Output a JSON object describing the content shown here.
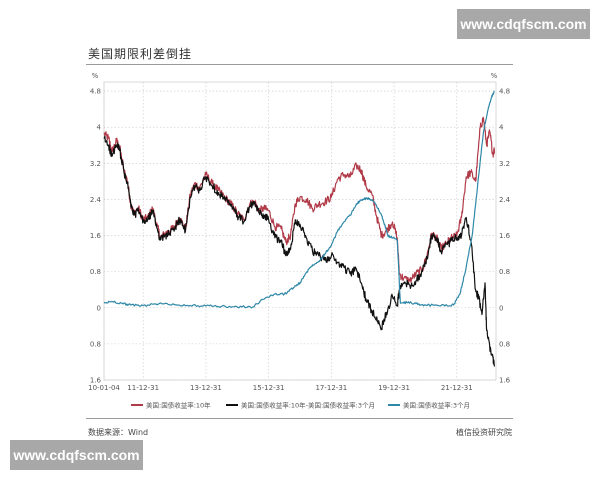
{
  "watermark": "www.cdqfscm.com",
  "chart_data": {
    "type": "line",
    "title": "美国期限利差倒挂",
    "left_unit": "%",
    "right_unit": "%",
    "ylim": [
      -1.6,
      5.0
    ],
    "yticks": [
      4.8,
      4,
      3.2,
      2.4,
      1.6,
      0.8,
      0,
      -0.8,
      -1.6
    ],
    "ytick_labels": [
      "4.8",
      "4",
      "3.2",
      "2.4",
      "1.6",
      "0.8",
      "0",
      "0.8",
      "1.6"
    ],
    "xlim": [
      2010.75,
      2023.25
    ],
    "xticks": [
      {
        "t": 2010.75,
        "label": "10-01-04"
      },
      {
        "t": 2012.0,
        "label": "11-12-31"
      },
      {
        "t": 2014.0,
        "label": "13-12-31"
      },
      {
        "t": 2016.0,
        "label": "15-12-31"
      },
      {
        "t": 2018.0,
        "label": "17-12-31"
      },
      {
        "t": 2020.0,
        "label": "19-12-31"
      },
      {
        "t": 2022.0,
        "label": "21-12-31"
      }
    ],
    "grid": true,
    "legend_position": "bottom",
    "series": [
      {
        "name": "美国:国债收益率:10年",
        "color": "#b03a48",
        "points": [
          [
            2010.75,
            3.85
          ],
          [
            2010.9,
            3.75
          ],
          [
            2011.0,
            3.45
          ],
          [
            2011.15,
            3.7
          ],
          [
            2011.25,
            3.55
          ],
          [
            2011.4,
            3.0
          ],
          [
            2011.5,
            2.8
          ],
          [
            2011.6,
            2.3
          ],
          [
            2011.7,
            2.1
          ],
          [
            2011.85,
            2.2
          ],
          [
            2012.0,
            1.95
          ],
          [
            2012.15,
            2.0
          ],
          [
            2012.3,
            2.2
          ],
          [
            2012.45,
            1.8
          ],
          [
            2012.55,
            1.55
          ],
          [
            2012.7,
            1.65
          ],
          [
            2012.85,
            1.7
          ],
          [
            2013.0,
            1.8
          ],
          [
            2013.15,
            2.0
          ],
          [
            2013.35,
            1.75
          ],
          [
            2013.5,
            2.5
          ],
          [
            2013.65,
            2.75
          ],
          [
            2013.8,
            2.65
          ],
          [
            2014.0,
            2.95
          ],
          [
            2014.2,
            2.75
          ],
          [
            2014.4,
            2.6
          ],
          [
            2014.6,
            2.45
          ],
          [
            2014.8,
            2.3
          ],
          [
            2015.0,
            2.1
          ],
          [
            2015.2,
            1.95
          ],
          [
            2015.4,
            2.3
          ],
          [
            2015.55,
            2.35
          ],
          [
            2015.7,
            2.15
          ],
          [
            2015.85,
            2.2
          ],
          [
            2016.0,
            2.15
          ],
          [
            2016.2,
            1.8
          ],
          [
            2016.4,
            1.75
          ],
          [
            2016.55,
            1.45
          ],
          [
            2016.7,
            1.6
          ],
          [
            2016.85,
            2.3
          ],
          [
            2017.0,
            2.45
          ],
          [
            2017.2,
            2.4
          ],
          [
            2017.4,
            2.2
          ],
          [
            2017.6,
            2.3
          ],
          [
            2017.8,
            2.35
          ],
          [
            2018.0,
            2.45
          ],
          [
            2018.2,
            2.85
          ],
          [
            2018.4,
            2.95
          ],
          [
            2018.6,
            2.9
          ],
          [
            2018.8,
            3.15
          ],
          [
            2018.95,
            3.05
          ],
          [
            2019.1,
            2.7
          ],
          [
            2019.3,
            2.5
          ],
          [
            2019.45,
            2.0
          ],
          [
            2019.6,
            1.6
          ],
          [
            2019.75,
            1.7
          ],
          [
            2019.95,
            1.9
          ],
          [
            2020.1,
            1.55
          ],
          [
            2020.17,
            0.75
          ],
          [
            2020.3,
            0.65
          ],
          [
            2020.5,
            0.6
          ],
          [
            2020.7,
            0.75
          ],
          [
            2020.9,
            0.85
          ],
          [
            2021.05,
            1.15
          ],
          [
            2021.2,
            1.65
          ],
          [
            2021.35,
            1.55
          ],
          [
            2021.5,
            1.3
          ],
          [
            2021.7,
            1.45
          ],
          [
            2021.85,
            1.55
          ],
          [
            2022.0,
            1.6
          ],
          [
            2022.15,
            2.0
          ],
          [
            2022.3,
            2.9
          ],
          [
            2022.45,
            3.0
          ],
          [
            2022.6,
            2.8
          ],
          [
            2022.75,
            4.0
          ],
          [
            2022.85,
            4.2
          ],
          [
            2022.95,
            3.6
          ],
          [
            2023.05,
            3.9
          ],
          [
            2023.15,
            3.4
          ],
          [
            2023.2,
            3.5
          ]
        ]
      },
      {
        "name": "美国:国债收益率:10年-美国:国债收益率:3个月",
        "color": "#111111",
        "points": [
          [
            2010.75,
            3.75
          ],
          [
            2010.9,
            3.6
          ],
          [
            2011.0,
            3.35
          ],
          [
            2011.15,
            3.6
          ],
          [
            2011.25,
            3.5
          ],
          [
            2011.4,
            2.95
          ],
          [
            2011.5,
            2.75
          ],
          [
            2011.6,
            2.3
          ],
          [
            2011.7,
            2.05
          ],
          [
            2011.85,
            2.15
          ],
          [
            2012.0,
            1.9
          ],
          [
            2012.15,
            1.95
          ],
          [
            2012.3,
            2.15
          ],
          [
            2012.45,
            1.75
          ],
          [
            2012.55,
            1.5
          ],
          [
            2012.7,
            1.6
          ],
          [
            2012.85,
            1.65
          ],
          [
            2013.0,
            1.75
          ],
          [
            2013.15,
            1.95
          ],
          [
            2013.35,
            1.7
          ],
          [
            2013.5,
            2.45
          ],
          [
            2013.65,
            2.7
          ],
          [
            2013.8,
            2.6
          ],
          [
            2014.0,
            2.9
          ],
          [
            2014.2,
            2.7
          ],
          [
            2014.4,
            2.55
          ],
          [
            2014.6,
            2.4
          ],
          [
            2014.8,
            2.25
          ],
          [
            2015.0,
            2.05
          ],
          [
            2015.2,
            1.9
          ],
          [
            2015.4,
            2.25
          ],
          [
            2015.55,
            2.3
          ],
          [
            2015.7,
            2.1
          ],
          [
            2015.85,
            2.05
          ],
          [
            2016.0,
            1.95
          ],
          [
            2016.2,
            1.55
          ],
          [
            2016.4,
            1.5
          ],
          [
            2016.55,
            1.15
          ],
          [
            2016.7,
            1.3
          ],
          [
            2016.85,
            1.95
          ],
          [
            2017.0,
            1.85
          ],
          [
            2017.2,
            1.55
          ],
          [
            2017.4,
            1.25
          ],
          [
            2017.6,
            1.15
          ],
          [
            2017.8,
            1.05
          ],
          [
            2018.0,
            1.15
          ],
          [
            2018.2,
            1.0
          ],
          [
            2018.4,
            0.9
          ],
          [
            2018.6,
            0.75
          ],
          [
            2018.8,
            0.85
          ],
          [
            2018.95,
            0.55
          ],
          [
            2019.1,
            0.2
          ],
          [
            2019.3,
            -0.1
          ],
          [
            2019.45,
            -0.2
          ],
          [
            2019.6,
            -0.45
          ],
          [
            2019.75,
            -0.1
          ],
          [
            2019.95,
            0.25
          ],
          [
            2020.1,
            0.05
          ],
          [
            2020.17,
            0.4
          ],
          [
            2020.3,
            0.55
          ],
          [
            2020.5,
            0.5
          ],
          [
            2020.7,
            0.6
          ],
          [
            2020.9,
            0.8
          ],
          [
            2021.05,
            1.1
          ],
          [
            2021.2,
            1.6
          ],
          [
            2021.35,
            1.55
          ],
          [
            2021.5,
            1.25
          ],
          [
            2021.7,
            1.4
          ],
          [
            2021.85,
            1.5
          ],
          [
            2022.0,
            1.55
          ],
          [
            2022.15,
            1.6
          ],
          [
            2022.3,
            2.0
          ],
          [
            2022.45,
            1.5
          ],
          [
            2022.6,
            0.4
          ],
          [
            2022.7,
            0.2
          ],
          [
            2022.8,
            -0.15
          ],
          [
            2022.9,
            0.55
          ],
          [
            2022.95,
            -0.5
          ],
          [
            2023.05,
            -0.85
          ],
          [
            2023.15,
            -1.1
          ],
          [
            2023.2,
            -1.3
          ]
        ]
      },
      {
        "name": "美国:国债收益率:3个月",
        "color": "#2f88a8",
        "points": [
          [
            2010.75,
            0.1
          ],
          [
            2011.0,
            0.14
          ],
          [
            2011.3,
            0.1
          ],
          [
            2011.6,
            0.06
          ],
          [
            2012.0,
            0.05
          ],
          [
            2012.5,
            0.09
          ],
          [
            2013.0,
            0.07
          ],
          [
            2013.5,
            0.05
          ],
          [
            2014.0,
            0.04
          ],
          [
            2014.5,
            0.03
          ],
          [
            2015.0,
            0.02
          ],
          [
            2015.5,
            0.02
          ],
          [
            2015.9,
            0.22
          ],
          [
            2016.2,
            0.3
          ],
          [
            2016.5,
            0.3
          ],
          [
            2016.8,
            0.45
          ],
          [
            2017.0,
            0.55
          ],
          [
            2017.2,
            0.78
          ],
          [
            2017.4,
            0.95
          ],
          [
            2017.6,
            1.03
          ],
          [
            2017.8,
            1.2
          ],
          [
            2018.0,
            1.38
          ],
          [
            2018.2,
            1.7
          ],
          [
            2018.4,
            1.9
          ],
          [
            2018.6,
            2.05
          ],
          [
            2018.8,
            2.3
          ],
          [
            2018.95,
            2.38
          ],
          [
            2019.1,
            2.42
          ],
          [
            2019.3,
            2.4
          ],
          [
            2019.5,
            2.2
          ],
          [
            2019.65,
            1.95
          ],
          [
            2019.8,
            1.6
          ],
          [
            2019.95,
            1.55
          ],
          [
            2020.1,
            1.5
          ],
          [
            2020.2,
            0.1
          ],
          [
            2020.4,
            0.12
          ],
          [
            2020.7,
            0.09
          ],
          [
            2021.0,
            0.06
          ],
          [
            2021.5,
            0.05
          ],
          [
            2021.9,
            0.06
          ],
          [
            2022.1,
            0.3
          ],
          [
            2022.3,
            0.9
          ],
          [
            2022.5,
            1.65
          ],
          [
            2022.7,
            2.95
          ],
          [
            2022.85,
            3.9
          ],
          [
            2023.0,
            4.4
          ],
          [
            2023.1,
            4.65
          ],
          [
            2023.2,
            4.8
          ]
        ]
      }
    ],
    "source": "数据来源：Wind",
    "organization": "植信投资研究院"
  }
}
